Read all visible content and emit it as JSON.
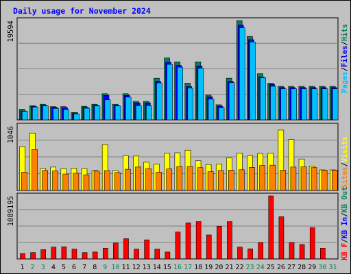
{
  "title": "Daily usage for November 2024",
  "colors": {
    "background": "#c0c0c0",
    "title": "#0000ff",
    "hits": "#00805c",
    "files": "#0000ff",
    "pages": "#00c0ff",
    "visits": "#ffff00",
    "sites": "#ff8000",
    "kbytes": "#ff0000",
    "day_weekday": "#000000",
    "day_weekend": "#00805c"
  },
  "chart_data": [
    {
      "type": "bar",
      "panel": "hits-files-pages",
      "ymax_label": "19594",
      "ylim": [
        0,
        19594
      ],
      "grid": true,
      "legend": {
        "hits": "Hits",
        "files": "Files",
        "pages": "Pages",
        "sep": "/"
      },
      "series": [
        {
          "name": "Hits",
          "values": [
            2096,
            2800,
            3082,
            2614,
            2614,
            1447,
            2678,
            3082,
            5156,
            3082,
            5156,
            3643,
            3643,
            8220,
            12220,
            11440,
            7240,
            11440,
            4890,
            2980,
            8220,
            19594,
            16460,
            9110,
            7210,
            6610,
            6610,
            6610,
            6610,
            6610,
            6610
          ]
        },
        {
          "name": "Files",
          "values": [
            1750,
            2650,
            2870,
            2520,
            2390,
            1390,
            2470,
            2880,
            4825,
            2880,
            4825,
            3370,
            3370,
            7630,
            11380,
            10740,
            6570,
            10640,
            4560,
            2690,
            7600,
            18710,
            15820,
            8480,
            7030,
            6380,
            6380,
            6380,
            6380,
            6380,
            6380
          ]
        },
        {
          "name": "Pages",
          "values": [
            1690,
            2540,
            2740,
            2260,
            2050,
            1180,
            2300,
            2740,
            3960,
            2740,
            4480,
            2810,
            2810,
            7290,
            10940,
            10390,
            6290,
            10170,
            4090,
            2410,
            7340,
            18160,
            15370,
            8320,
            6630,
            6120,
            6120,
            6120,
            6120,
            6120,
            6120
          ]
        }
      ]
    },
    {
      "type": "bar",
      "panel": "visits-sites",
      "ymax_label": "1046",
      "ylim": [
        0,
        1046
      ],
      "grid": true,
      "legend": {
        "visits": "Visits",
        "sites": "Sites",
        "sep": "/"
      },
      "series": [
        {
          "name": "Visits",
          "values": [
            712,
            932,
            354,
            380,
            354,
            360,
            354,
            322,
            746,
            322,
            564,
            558,
            458,
            426,
            606,
            612,
            654,
            482,
            420,
            430,
            528,
            608,
            564,
            602,
            608,
            980,
            830,
            510,
            396,
            334,
            334
          ]
        },
        {
          "name": "Sites",
          "values": [
            294,
            664,
            324,
            318,
            266,
            280,
            254,
            314,
            322,
            290,
            344,
            380,
            354,
            294,
            350,
            390,
            390,
            370,
            304,
            324,
            330,
            336,
            374,
            404,
            410,
            328,
            380,
            384,
            370,
            330,
            330
          ]
        }
      ]
    },
    {
      "type": "bar",
      "panel": "kbytes",
      "ymax_label": "1089195",
      "ylim": [
        0,
        1089195
      ],
      "grid": true,
      "legend": {
        "kbytes": "KBytes",
        "text": "KB F",
        "in": "KB In",
        "out": "KB Out"
      },
      "series": [
        {
          "name": "KBytes",
          "values": [
            94000,
            110000,
            160000,
            205000,
            210000,
            170000,
            110000,
            120000,
            185000,
            275000,
            350000,
            170000,
            330000,
            170000,
            120000,
            465000,
            625000,
            645000,
            415000,
            565000,
            645000,
            205000,
            175000,
            285000,
            1089195,
            730000,
            285000,
            250000,
            540000,
            185000,
            0
          ]
        }
      ],
      "categories": [
        "1",
        "2",
        "3",
        "4",
        "5",
        "6",
        "7",
        "8",
        "9",
        "10",
        "11",
        "12",
        "13",
        "14",
        "15",
        "16",
        "17",
        "18",
        "19",
        "20",
        "21",
        "22",
        "23",
        "24",
        "25",
        "26",
        "27",
        "28",
        "29",
        "30",
        "31"
      ],
      "weekend_days": [
        2,
        3,
        9,
        10,
        16,
        17,
        23,
        24,
        30,
        31
      ]
    }
  ]
}
